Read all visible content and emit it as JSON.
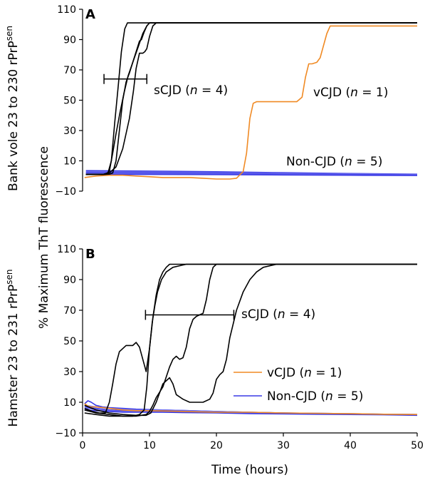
{
  "figure": {
    "shared_ylabel": "% Maximum ThT fluorescence",
    "xlabel": "Time (hours)"
  },
  "colors": {
    "sCJD": "#000000",
    "vCJD": "#f08a24",
    "Non-CJD": "#3a3ae6",
    "nonCJD_alt": "#7070ee"
  },
  "chart_data": [
    {
      "panel": "A",
      "type": "line",
      "row_label": {
        "pre": "Bank vole 23 to 230 rPrP",
        "sup": "sen"
      },
      "xlim": [
        0,
        50
      ],
      "ylim": [
        -10,
        110
      ],
      "yticks": [
        "−10",
        "10",
        "30",
        "50",
        "70",
        "90",
        "110"
      ],
      "xticks": [],
      "annotations": [
        {
          "group": "sCJD",
          "label": "sCJD (",
          "n_label": "n",
          "suffix": " = 4)",
          "range": [
            3.2,
            9.6
          ],
          "y": 64
        },
        {
          "group": "vCJD",
          "label": "vCJD (",
          "n_label": "n",
          "suffix": " = 1)"
        },
        {
          "group": "Non-CJD",
          "label": "Non-CJD (",
          "n_label": "n",
          "suffix": " = 5)"
        }
      ],
      "series": [
        {
          "name": "sCJD 1",
          "group": "sCJD",
          "x": [
            0.5,
            3.0,
            3.8,
            4.3,
            4.8,
            5.3,
            5.8,
            6.3,
            6.7,
            7.2,
            50
          ],
          "y": [
            1,
            1,
            2,
            10,
            35,
            58,
            82,
            97,
            101,
            101,
            101
          ]
        },
        {
          "name": "sCJD 2",
          "group": "sCJD",
          "x": [
            0.5,
            3.0,
            3.5,
            4.0,
            4.5,
            5.0,
            5.6,
            6.2,
            6.8,
            7.5,
            8.3,
            9.0,
            9.6,
            10.0,
            50
          ],
          "y": [
            1,
            1,
            1.5,
            3,
            15,
            28,
            42,
            55,
            66,
            75,
            85,
            94,
            99,
            101,
            101
          ]
        },
        {
          "name": "sCJD 3",
          "group": "sCJD",
          "x": [
            0.5,
            3.0,
            4.0,
            5.0,
            6.0,
            7.0,
            7.6,
            8.0,
            8.5,
            9.0,
            9.3,
            9.6,
            10.0,
            10.5,
            11.0,
            11.6,
            50
          ],
          "y": [
            1,
            1,
            2,
            6,
            18,
            38,
            56,
            71,
            81,
            81,
            82,
            84,
            92,
            99,
            101,
            101,
            101
          ]
        },
        {
          "name": "sCJD 4",
          "group": "sCJD",
          "x": [
            0.5,
            3.2,
            4.0,
            4.5,
            5.0,
            5.5,
            6.0,
            6.5,
            7.0,
            7.5,
            8.0,
            8.5,
            8.8,
            9.2,
            9.6,
            10.0,
            50
          ],
          "y": [
            1,
            1,
            1.2,
            2,
            10,
            30,
            50,
            62,
            68,
            75,
            82,
            89,
            90,
            95,
            99,
            101,
            101
          ]
        },
        {
          "name": "vCJD",
          "group": "vCJD",
          "x": [
            0.3,
            2,
            4,
            6,
            8,
            10,
            12,
            14,
            16,
            18,
            20,
            22,
            23,
            24,
            24.5,
            25,
            25.5,
            26,
            26.5,
            28,
            30,
            32,
            32.8,
            33.3,
            33.8,
            34.3,
            35,
            35.5,
            36,
            36.5,
            37,
            37.5,
            38,
            39,
            40,
            45,
            50
          ],
          "y": [
            -1,
            0,
            0.5,
            0.5,
            0,
            -0.5,
            -1,
            -1,
            -1,
            -1.5,
            -2,
            -2,
            -1.5,
            3,
            15,
            38,
            48,
            49,
            49,
            49,
            49,
            49,
            52,
            65,
            74,
            74,
            75,
            78,
            86,
            94,
            99,
            99,
            99,
            99,
            99,
            99,
            99
          ]
        },
        {
          "name": "Non-CJD 1",
          "group": "Non-CJD",
          "x": [
            0.5,
            10,
            20,
            30,
            40,
            50
          ],
          "y": [
            3.5,
            3.2,
            2.8,
            2.2,
            1.6,
            1.2
          ]
        },
        {
          "name": "Non-CJD 2",
          "group": "Non-CJD",
          "x": [
            0.5,
            10,
            20,
            30,
            40,
            50
          ],
          "y": [
            2.8,
            2.6,
            2.2,
            1.8,
            1.4,
            1.0
          ]
        },
        {
          "name": "Non-CJD 3",
          "group": "Non-CJD",
          "x": [
            0.5,
            10,
            20,
            30,
            40,
            50
          ],
          "y": [
            2.2,
            2.0,
            1.7,
            1.3,
            1.0,
            0.7
          ]
        },
        {
          "name": "Non-CJD 4",
          "group": "Non-CJD",
          "x": [
            0.5,
            10,
            20,
            30,
            40,
            50
          ],
          "y": [
            1.6,
            1.5,
            1.3,
            1.0,
            0.7,
            0.5
          ]
        },
        {
          "name": "Non-CJD 5",
          "group": "Non-CJD",
          "x": [
            0.5,
            10,
            20,
            30,
            40,
            50
          ],
          "y": [
            1.0,
            1.0,
            0.9,
            0.7,
            0.5,
            0.3
          ]
        }
      ]
    },
    {
      "panel": "B",
      "type": "line",
      "row_label": {
        "pre": "Hamster 23 to 231 rPrP",
        "sup": "sen"
      },
      "xlim": [
        0,
        50
      ],
      "ylim": [
        -10,
        110
      ],
      "yticks": [
        "−10",
        "10",
        "30",
        "50",
        "70",
        "90",
        "110"
      ],
      "xticks": [
        "0",
        "10",
        "20",
        "30",
        "40",
        "50"
      ],
      "annotations": [
        {
          "group": "sCJD",
          "label": "sCJD (",
          "n_label": "n",
          "suffix": " = 4)",
          "range": [
            9.4,
            22.6
          ],
          "y": 67
        }
      ],
      "legend": [
        {
          "group": "vCJD",
          "label": "vCJD (",
          "n_label": "n",
          "suffix": " = 1)"
        },
        {
          "group": "Non-CJD",
          "label": "Non-CJD (",
          "n_label": "n",
          "suffix": " = 5)"
        }
      ],
      "series": [
        {
          "name": "sCJD 1",
          "group": "sCJD",
          "x": [
            0.3,
            1.5,
            2.5,
            3.4,
            4.0,
            4.5,
            5.0,
            5.5,
            6.5,
            7.5,
            8.0,
            8.5,
            9.0,
            9.5,
            10.0,
            10.5,
            11.0,
            11.5,
            12.0,
            12.5,
            13.0,
            14.0,
            50
          ],
          "y": [
            6,
            4,
            3,
            3,
            10,
            22,
            35,
            43,
            47,
            47,
            49,
            46,
            38,
            30,
            45,
            65,
            80,
            90,
            95,
            98,
            100,
            100,
            100
          ]
        },
        {
          "name": "sCJD 2",
          "group": "sCJD",
          "x": [
            0.3,
            2,
            4,
            6,
            7.5,
            8.5,
            9.2,
            9.6,
            10.0,
            10.4,
            10.8,
            11.2,
            11.8,
            12.5,
            13.5,
            14.5,
            15.5,
            16.0,
            50
          ],
          "y": [
            3,
            2,
            1,
            1,
            1,
            2,
            5,
            20,
            45,
            62,
            73,
            82,
            90,
            95,
            98,
            99,
            100,
            100,
            100
          ]
        },
        {
          "name": "sCJD 3",
          "group": "sCJD",
          "x": [
            0.3,
            2,
            4,
            6,
            8,
            9.5,
            10.0,
            10.5,
            11,
            12,
            13,
            13.5,
            14,
            14.5,
            15,
            15.5,
            16.0,
            16.5,
            17,
            17.5,
            18,
            18.5,
            19,
            19.5,
            20,
            50
          ],
          "y": [
            5,
            3,
            2,
            1,
            1,
            2,
            4,
            8,
            13,
            20,
            33,
            38,
            40,
            38,
            39,
            46,
            58,
            64,
            66,
            67,
            68,
            77,
            90,
            98,
            100,
            100
          ]
        },
        {
          "name": "sCJD 4",
          "group": "sCJD",
          "x": [
            0.3,
            2,
            4,
            6,
            8,
            9.5,
            10.2,
            11,
            12,
            12.5,
            13,
            13.5,
            14,
            15,
            16,
            17,
            18,
            19,
            19.5,
            20,
            20.5,
            21,
            21.5,
            22,
            23,
            24,
            25,
            26,
            27,
            28,
            29,
            30,
            50
          ],
          "y": [
            8,
            5,
            3,
            2,
            1.5,
            1.5,
            3,
            10,
            22,
            24,
            26,
            22,
            15,
            12,
            10,
            10,
            10,
            12,
            16,
            25,
            28,
            30,
            38,
            52,
            70,
            82,
            90,
            95,
            98,
            99,
            100,
            100,
            100
          ]
        },
        {
          "name": "vCJD",
          "group": "vCJD",
          "x": [
            0.3,
            1,
            2,
            3,
            4,
            5,
            6,
            8,
            10,
            15,
            20,
            25,
            30,
            35,
            40,
            45,
            50
          ],
          "y": [
            9,
            7,
            7,
            6.5,
            6,
            5.5,
            5,
            4.5,
            4.5,
            4,
            3.5,
            3.5,
            3,
            2.8,
            2.5,
            2.2,
            2
          ]
        },
        {
          "name": "Non-CJD 1",
          "group": "Non-CJD",
          "x": [
            0.3,
            0.8,
            1.3,
            2,
            3,
            4,
            6,
            8,
            12,
            16,
            20,
            25,
            30,
            35,
            40,
            45,
            50
          ],
          "y": [
            9,
            11,
            10,
            8,
            7,
            6.5,
            6,
            5.5,
            5,
            4.5,
            4,
            3.5,
            3,
            2.8,
            2.5,
            2.2,
            2
          ]
        },
        {
          "name": "Non-CJD 2",
          "group": "Non-CJD",
          "x": [
            0.3,
            2,
            4,
            6,
            8,
            12,
            16,
            20,
            25,
            30,
            35,
            40,
            45,
            50
          ],
          "y": [
            8,
            7,
            6,
            5.5,
            5,
            5,
            4.5,
            4,
            3.5,
            3,
            2.8,
            2.5,
            2.2,
            2
          ]
        },
        {
          "name": "Non-CJD 3",
          "group": "Non-CJD",
          "x": [
            0.3,
            2,
            4,
            6,
            8,
            12,
            16,
            20,
            25,
            30,
            35,
            40,
            45,
            50
          ],
          "y": [
            7,
            6,
            5,
            4.5,
            4.5,
            4.5,
            4,
            3.5,
            3.2,
            3,
            2.6,
            2.3,
            2,
            1.8
          ]
        },
        {
          "name": "Non-CJD 4",
          "group": "Non-CJD",
          "x": [
            0.3,
            2,
            4,
            6,
            8,
            12,
            16,
            20,
            25,
            30,
            35,
            40,
            45,
            50
          ],
          "y": [
            6,
            5.5,
            4.5,
            4,
            4,
            4,
            3.8,
            3.5,
            3,
            2.8,
            2.5,
            2.2,
            2,
            1.6
          ]
        },
        {
          "name": "Non-CJD 5",
          "group": "Non-CJD",
          "x": [
            0.3,
            2,
            4,
            6,
            8,
            12,
            16,
            20,
            25,
            30,
            35,
            40,
            45,
            50
          ],
          "y": [
            5,
            4.5,
            4,
            3.5,
            3.5,
            3.5,
            3.2,
            3,
            2.6,
            2.4,
            2.2,
            2,
            1.8,
            1.5
          ]
        }
      ]
    }
  ]
}
